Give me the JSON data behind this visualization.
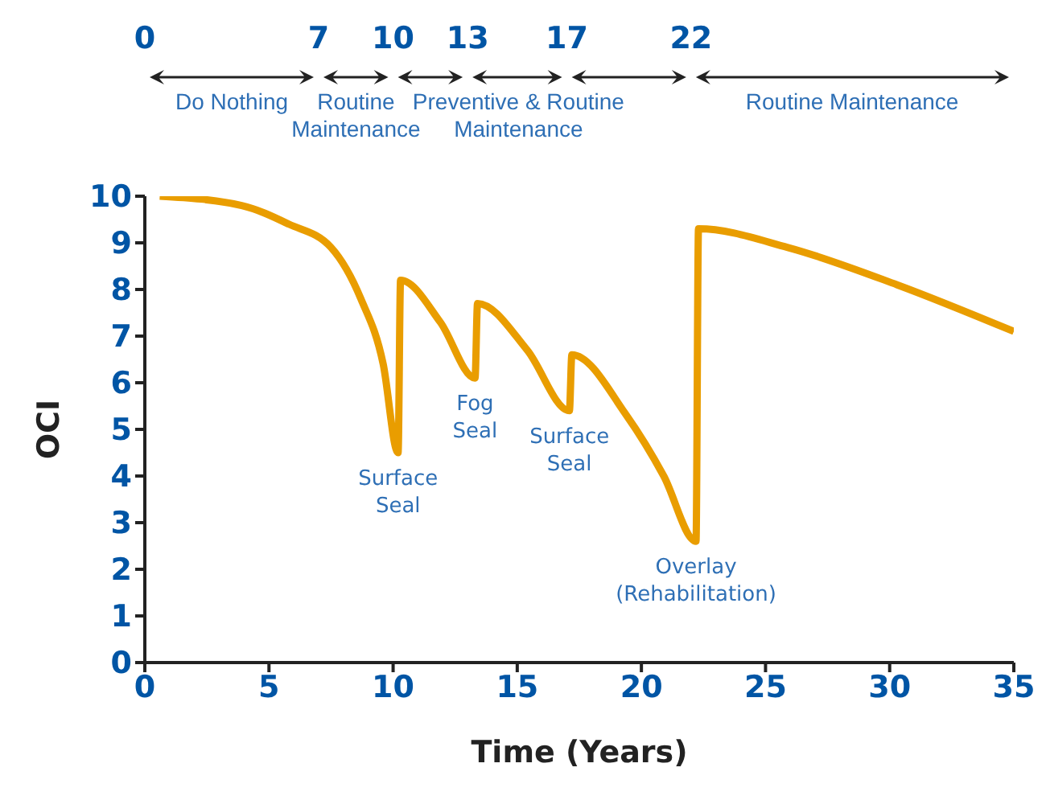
{
  "chart_data": {
    "type": "line",
    "xlabel": "Time (Years)",
    "ylabel": "OCI",
    "line_style": "solid",
    "x": [
      0.6,
      3.9,
      5.8,
      7.5,
      8.7,
      9.6,
      10.2,
      10.3,
      11.9,
      13.3,
      13.4,
      15.4,
      17.1,
      17.2,
      19.4,
      20.9,
      22.2,
      22.3,
      25.9,
      30.3,
      35
    ],
    "series": [
      {
        "color": "#e99d00",
        "values": [
          10,
          9.8,
          9.4,
          8.9,
          7.8,
          6.4,
          4.5,
          8.2,
          7.3,
          6.1,
          7.7,
          6.7,
          5.4,
          6.6,
          5.3,
          4.0,
          2.6,
          9.3,
          8.9,
          8.1,
          7.1
        ]
      }
    ],
    "xlim": [
      0,
      35
    ],
    "xticks": [
      0,
      5,
      10,
      15,
      20,
      25,
      30,
      35
    ],
    "ylim": [
      0,
      10
    ],
    "yticks": [
      0,
      1,
      2,
      3,
      4,
      5,
      6,
      7,
      8,
      9,
      10
    ],
    "x2lim": [
      0,
      35
    ],
    "x2ticks": [
      0,
      7,
      10,
      13,
      17,
      22
    ],
    "annotations": [
      "Do Nothing",
      "Routine Maintenance",
      "Preventive & Routine Maintenance",
      "Routine Maintenance",
      {
        "text": "Surface Seal",
        "x": 10.2,
        "y": 4.5
      },
      {
        "text": "Fog Seal",
        "x": 13.3,
        "y": 6.1
      },
      {
        "text": "Surface Seal",
        "x": 17.1,
        "y": 5.4
      },
      {
        "text": "Overlay (Rehabilitation)",
        "x": 22.2,
        "y": 2.6
      }
    ]
  }
}
